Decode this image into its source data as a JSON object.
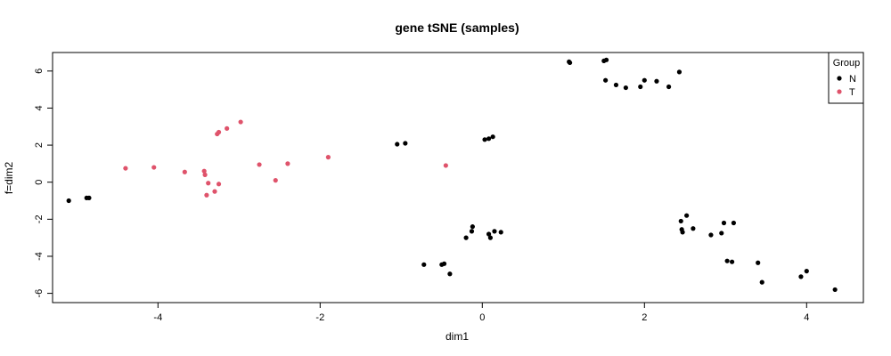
{
  "chart_data": {
    "type": "scatter",
    "title": "gene tSNE (samples)",
    "xlabel": "dim1",
    "ylabel": "f=dim2",
    "xlim": [
      -5.3,
      4.7
    ],
    "ylim": [
      -6.5,
      7.0
    ],
    "xticks": [
      -4,
      -2,
      0,
      2,
      4
    ],
    "yticks": [
      -6,
      -4,
      -2,
      0,
      2,
      4,
      6
    ],
    "grid": false,
    "legend": {
      "title": "Group",
      "position": "top-right"
    },
    "series": [
      {
        "name": "N",
        "color": "#000000",
        "points": [
          [
            -5.1,
            -1.0
          ],
          [
            -4.88,
            -0.85
          ],
          [
            -4.85,
            -0.85
          ],
          [
            -1.05,
            2.05
          ],
          [
            -0.95,
            2.1
          ],
          [
            0.03,
            2.3
          ],
          [
            0.08,
            2.35
          ],
          [
            0.13,
            2.45
          ],
          [
            -0.2,
            -3.0
          ],
          [
            -0.13,
            -2.65
          ],
          [
            -0.12,
            -2.4
          ],
          [
            0.08,
            -2.8
          ],
          [
            0.1,
            -3.0
          ],
          [
            0.15,
            -2.65
          ],
          [
            0.23,
            -2.7
          ],
          [
            -0.72,
            -4.45
          ],
          [
            -0.5,
            -4.45
          ],
          [
            -0.47,
            -4.4
          ],
          [
            -0.4,
            -4.95
          ],
          [
            1.07,
            6.5
          ],
          [
            1.08,
            6.45
          ],
          [
            1.5,
            6.55
          ],
          [
            1.53,
            6.6
          ],
          [
            1.52,
            5.5
          ],
          [
            1.65,
            5.25
          ],
          [
            1.77,
            5.1
          ],
          [
            1.95,
            5.15
          ],
          [
            2.0,
            5.5
          ],
          [
            2.15,
            5.45
          ],
          [
            2.3,
            5.15
          ],
          [
            2.43,
            5.95
          ],
          [
            2.45,
            -2.1
          ],
          [
            2.46,
            -2.55
          ],
          [
            2.47,
            -2.7
          ],
          [
            2.52,
            -1.8
          ],
          [
            2.6,
            -2.5
          ],
          [
            2.82,
            -2.85
          ],
          [
            2.95,
            -2.75
          ],
          [
            2.98,
            -2.2
          ],
          [
            3.02,
            -4.25
          ],
          [
            3.08,
            -4.3
          ],
          [
            3.1,
            -2.2
          ],
          [
            3.4,
            -4.35
          ],
          [
            3.45,
            -5.4
          ],
          [
            3.93,
            -5.1
          ],
          [
            4.0,
            -4.8
          ],
          [
            4.35,
            -5.8
          ]
        ]
      },
      {
        "name": "T",
        "color": "#DF536B",
        "points": [
          [
            -4.4,
            0.75
          ],
          [
            -4.05,
            0.8
          ],
          [
            -3.67,
            0.55
          ],
          [
            -3.43,
            0.6
          ],
          [
            -3.42,
            0.4
          ],
          [
            -3.38,
            -0.05
          ],
          [
            -3.4,
            -0.7
          ],
          [
            -3.3,
            -0.5
          ],
          [
            -3.25,
            -0.1
          ],
          [
            -3.27,
            2.6
          ],
          [
            -3.25,
            2.7
          ],
          [
            -3.15,
            2.9
          ],
          [
            -2.98,
            3.25
          ],
          [
            -2.75,
            0.95
          ],
          [
            -2.4,
            1.0
          ],
          [
            -2.55,
            0.1
          ],
          [
            -1.9,
            1.35
          ],
          [
            -0.45,
            0.9
          ]
        ]
      }
    ]
  }
}
